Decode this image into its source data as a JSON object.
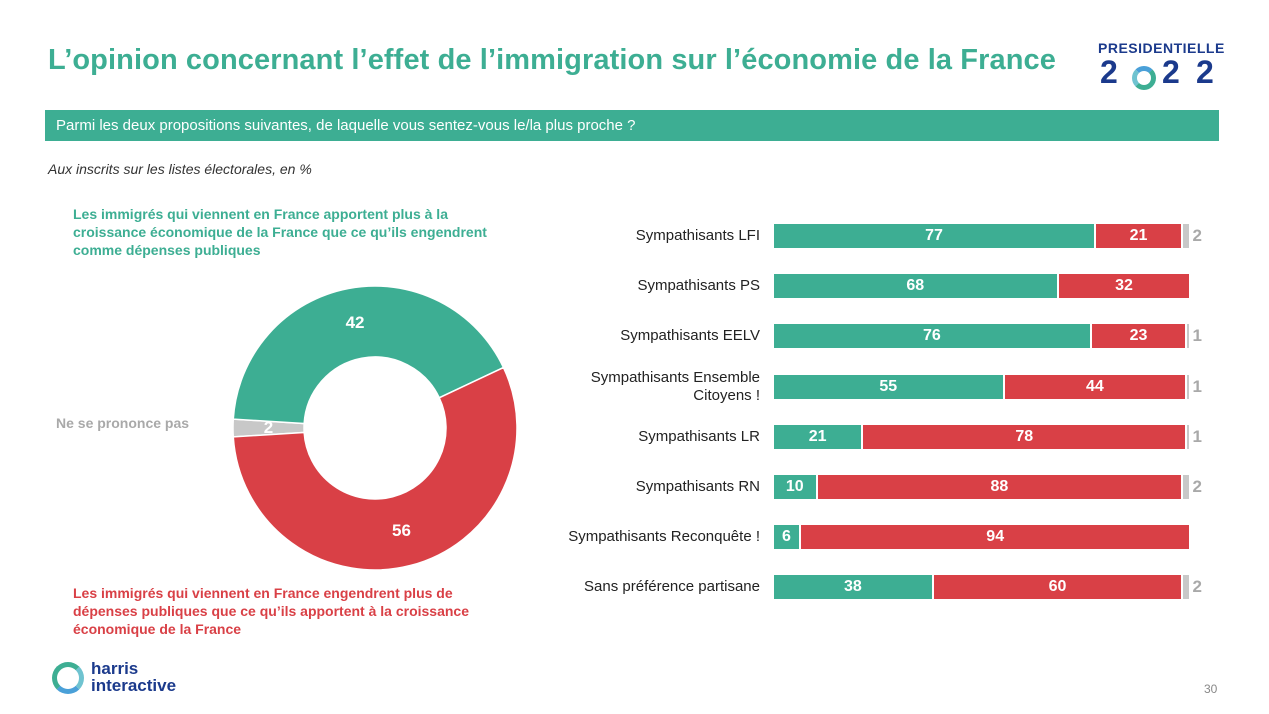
{
  "title": "L’opinion concernant l’effet de l’immigration sur l’économie de la France",
  "logo": {
    "top": "PRESIDENTIELLE",
    "d1": "2",
    "d3": "2",
    "d4": "2"
  },
  "banner": "Parmi les deux propositions suivantes, de laquelle vous sentez-vous le/la plus proche ?",
  "subtitle": "Aux inscrits sur les listes électorales, en %",
  "legend": {
    "green": "Les immigrés qui viennent en France apportent plus à la croissance économique de la France que ce qu’ils engendrent comme dépenses publiques",
    "red": "Les immigrés qui viennent en France engendrent plus de dépenses publiques que ce qu’ils apportent à la croissance économique de la France",
    "nsp": "Ne se prononce pas"
  },
  "colors": {
    "green": "#3dae93",
    "red": "#d94046",
    "grey": "#c8c8c8",
    "navy": "#1b3a8c"
  },
  "chart_data": [
    {
      "type": "pie",
      "categories": [
        "Les immigrés qui viennent en France apportent plus à la croissance économique de la France que ce qu’ils engendrent comme dépenses publiques",
        "Les immigrés qui viennent en France engendrent plus de dépenses publiques que ce qu’ils apportent à la croissance économique de la France",
        "Ne se prononce pas"
      ],
      "values": [
        42,
        56,
        2
      ]
    },
    {
      "type": "bar",
      "stacked": true,
      "orientation": "horizontal",
      "categories": [
        "Sympathisants LFI",
        "Sympathisants PS",
        "Sympathisants EELV",
        "Sympathisants Ensemble Citoyens !",
        "Sympathisants LR",
        "Sympathisants RN",
        "Sympathisants Reconquête !",
        "Sans préférence partisane"
      ],
      "series": [
        {
          "values": [
            77,
            68,
            76,
            55,
            21,
            10,
            6,
            38
          ]
        },
        {
          "values": [
            21,
            32,
            23,
            44,
            78,
            88,
            94,
            60
          ]
        },
        {
          "values": [
            2,
            0,
            1,
            1,
            1,
            2,
            0,
            2
          ]
        }
      ]
    }
  ],
  "footer": {
    "brand_line1": "harris",
    "brand_line2": "interactive",
    "page": "30"
  }
}
